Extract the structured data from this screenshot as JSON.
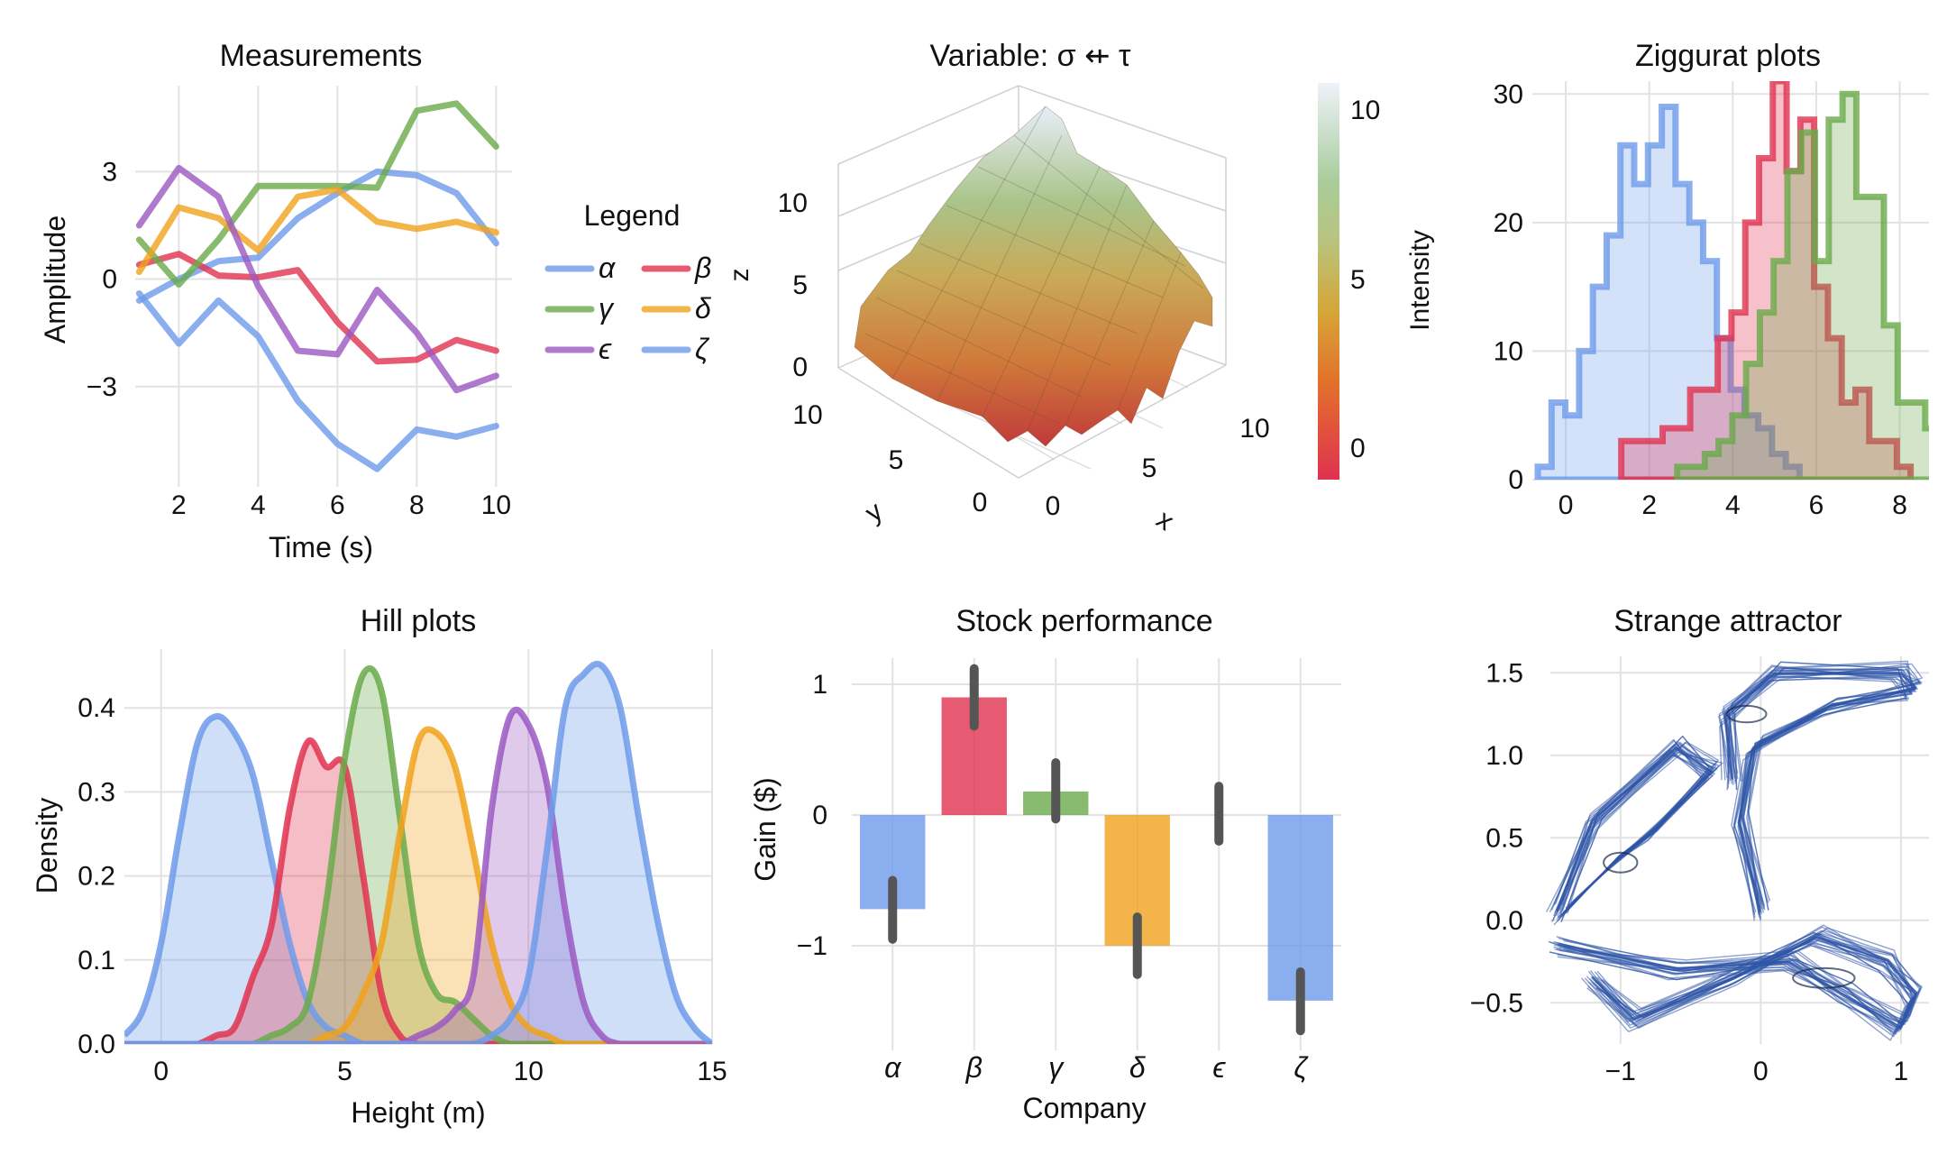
{
  "colors": {
    "blue": "#6e9bea",
    "red": "#e0324f",
    "green": "#6aaa4a",
    "orange": "#f0a21b",
    "purple": "#9b59c2",
    "grid": "#e2e2e2",
    "errorbar": "#555555",
    "attractor": "#2f55a8"
  },
  "measurements": {
    "title": "Measurements",
    "xlabel": "Time (s)",
    "ylabel": "Amplitude",
    "xticks": [
      "2",
      "4",
      "6",
      "8",
      "10"
    ],
    "yticks": [
      "3",
      "0",
      "−3"
    ],
    "legend_title": "Legend",
    "legend": [
      "α",
      "β",
      "γ",
      "δ",
      "ϵ",
      "ζ"
    ]
  },
  "surface": {
    "title": "Variable: σ ⇷ τ",
    "zlabel": "z",
    "xlabel": "x",
    "ylabel": "y",
    "zticks": [
      "0",
      "5",
      "10"
    ],
    "xticks": [
      "0",
      "5",
      "10"
    ],
    "yticks": [
      "0",
      "5",
      "10"
    ],
    "colorbar_label": "Intensity",
    "colorbar_ticks": [
      "10",
      "5",
      "0"
    ]
  },
  "ziggurat": {
    "title": "Ziggurat plots",
    "xticks": [
      "0",
      "2",
      "4",
      "6",
      "8"
    ],
    "yticks": [
      "30",
      "20",
      "10",
      "0"
    ]
  },
  "hill": {
    "title": "Hill plots",
    "xlabel": "Height (m)",
    "ylabel": "Density",
    "xticks": [
      "0",
      "5",
      "10",
      "15"
    ],
    "yticks": [
      "0.4",
      "0.3",
      "0.2",
      "0.1",
      "0.0"
    ]
  },
  "stock": {
    "title": "Stock performance",
    "xlabel": "Company",
    "ylabel": "Gain ($)",
    "yticks": [
      "1",
      "0",
      "−1"
    ],
    "categories": [
      "α",
      "β",
      "γ",
      "δ",
      "ϵ",
      "ζ"
    ]
  },
  "attractor": {
    "title": "Strange attractor",
    "xticks": [
      "−1",
      "0",
      "1"
    ],
    "yticks": [
      "1.5",
      "1.0",
      "0.5",
      "0.0",
      "−0.5"
    ]
  },
  "chart_data": [
    {
      "type": "line",
      "title": "Measurements",
      "xlabel": "Time (s)",
      "ylabel": "Amplitude",
      "xlim": [
        0.9,
        10.4
      ],
      "ylim": [
        -5.8,
        5.4
      ],
      "legend_position": "right",
      "x": [
        1,
        2,
        3,
        4,
        5,
        6,
        7,
        8,
        9,
        10
      ],
      "series": [
        {
          "name": "α",
          "color": "#6e9bea",
          "values": [
            -0.6,
            0.0,
            0.5,
            0.6,
            1.7,
            2.4,
            3.0,
            2.9,
            2.4,
            1.0
          ]
        },
        {
          "name": "β",
          "color": "#e0324f",
          "values": [
            0.4,
            0.7,
            0.1,
            0.05,
            0.25,
            -1.2,
            -2.3,
            -2.25,
            -1.7,
            -2.0
          ]
        },
        {
          "name": "γ",
          "color": "#6aaa4a",
          "values": [
            1.1,
            -0.15,
            1.1,
            2.6,
            2.6,
            2.6,
            2.55,
            4.7,
            4.9,
            3.7
          ]
        },
        {
          "name": "δ",
          "color": "#f0a21b",
          "values": [
            0.2,
            2.0,
            1.7,
            0.8,
            2.3,
            2.5,
            1.6,
            1.4,
            1.6,
            1.3
          ]
        },
        {
          "name": "ϵ",
          "color": "#9b59c2",
          "values": [
            1.5,
            3.1,
            2.3,
            -0.2,
            -2.0,
            -2.1,
            -0.3,
            -1.5,
            -3.1,
            -2.7
          ]
        },
        {
          "name": "ζ",
          "color": "#6e9bea",
          "values": [
            -0.4,
            -1.8,
            -0.6,
            -1.6,
            -3.4,
            -4.6,
            -5.3,
            -4.2,
            -4.4,
            -4.1
          ]
        }
      ]
    },
    {
      "type": "surface",
      "title": "Variable: σ ⇷ τ",
      "xlabel": "x",
      "ylabel": "y",
      "zlabel": "z",
      "xlim": [
        0,
        10
      ],
      "ylim": [
        0,
        10
      ],
      "zlim": [
        0,
        12
      ],
      "colorbar": {
        "label": "Intensity",
        "range": [
          -1,
          11
        ],
        "ticks": [
          0,
          5,
          10
        ]
      }
    },
    {
      "type": "histogram",
      "title": "Ziggurat plots",
      "xlim": [
        -0.8,
        8.7
      ],
      "ylim": [
        0,
        31
      ],
      "bin_width": 0.33,
      "series": [
        {
          "color": "#6e9bea",
          "x_start": -0.67,
          "values": [
            1,
            6,
            5,
            10,
            15,
            19,
            26,
            23,
            26,
            29,
            23,
            20,
            17,
            11,
            7,
            5,
            4,
            2,
            1,
            0
          ]
        },
        {
          "color": "#e0324f",
          "x_start": 1.33,
          "values": [
            3,
            3,
            3,
            4,
            4,
            7,
            7,
            11,
            13,
            20,
            25,
            31,
            24,
            28,
            15,
            11,
            6,
            7,
            3,
            3,
            1
          ]
        },
        {
          "color": "#6aaa4a",
          "x_start": 2.67,
          "values": [
            1,
            1,
            2,
            3,
            5,
            9,
            13,
            17,
            24,
            27,
            17,
            28,
            30,
            22,
            22,
            12,
            6,
            6,
            4
          ]
        }
      ]
    },
    {
      "type": "area",
      "title": "Hill plots",
      "xlabel": "Height (m)",
      "ylabel": "Density",
      "xlim": [
        -1,
        15
      ],
      "ylim": [
        0,
        0.47
      ],
      "x": [
        -1,
        -0.5,
        0,
        0.5,
        1,
        1.5,
        2,
        2.5,
        3,
        3.5,
        4,
        4.5,
        5,
        5.5,
        6,
        6.5,
        7,
        7.5,
        8,
        8.5,
        9,
        9.5,
        10,
        10.5,
        11,
        11.5,
        12,
        12.5,
        13,
        13.5,
        14,
        14.5,
        15
      ],
      "series": [
        {
          "color": "#6e9bea",
          "values": [
            0.01,
            0.04,
            0.12,
            0.25,
            0.36,
            0.39,
            0.37,
            0.32,
            0.22,
            0.12,
            0.05,
            0.02,
            0.01,
            0,
            0,
            0,
            0,
            0,
            0,
            0,
            0,
            0,
            0,
            0,
            0,
            0,
            0,
            0,
            0,
            0,
            0,
            0,
            0
          ]
        },
        {
          "color": "#e0324f",
          "values": [
            0,
            0,
            0,
            0,
            0,
            0.01,
            0.02,
            0.08,
            0.14,
            0.28,
            0.36,
            0.33,
            0.33,
            0.2,
            0.06,
            0.01,
            0,
            0,
            0,
            0,
            0,
            0,
            0,
            0,
            0,
            0,
            0,
            0,
            0,
            0,
            0,
            0,
            0
          ]
        },
        {
          "color": "#6aaa4a",
          "values": [
            0,
            0,
            0,
            0,
            0,
            0,
            0,
            0,
            0.01,
            0.02,
            0.05,
            0.17,
            0.34,
            0.44,
            0.42,
            0.27,
            0.12,
            0.06,
            0.05,
            0.03,
            0.01,
            0,
            0,
            0,
            0,
            0,
            0,
            0,
            0,
            0,
            0,
            0,
            0
          ]
        },
        {
          "color": "#f0a21b",
          "values": [
            0,
            0,
            0,
            0,
            0,
            0,
            0,
            0,
            0,
            0,
            0,
            0.01,
            0.02,
            0.06,
            0.12,
            0.25,
            0.36,
            0.37,
            0.33,
            0.23,
            0.12,
            0.05,
            0.02,
            0.01,
            0,
            0,
            0,
            0,
            0,
            0,
            0,
            0,
            0
          ]
        },
        {
          "color": "#9b59c2",
          "values": [
            0,
            0,
            0,
            0,
            0,
            0,
            0,
            0,
            0,
            0,
            0,
            0,
            0,
            0,
            0,
            0,
            0.01,
            0.02,
            0.04,
            0.08,
            0.28,
            0.39,
            0.38,
            0.31,
            0.16,
            0.05,
            0.01,
            0,
            0,
            0,
            0,
            0,
            0
          ]
        },
        {
          "color": "#6e9bea",
          "values": [
            0,
            0,
            0,
            0,
            0,
            0,
            0,
            0,
            0,
            0,
            0,
            0,
            0,
            0,
            0,
            0,
            0,
            0,
            0,
            0,
            0.01,
            0.03,
            0.08,
            0.23,
            0.4,
            0.44,
            0.45,
            0.4,
            0.27,
            0.15,
            0.06,
            0.02,
            0
          ]
        }
      ]
    },
    {
      "type": "bar",
      "title": "Stock performance",
      "xlabel": "Company",
      "ylabel": "Gain ($)",
      "ylim": [
        -1.8,
        1.2
      ],
      "categories": [
        "α",
        "β",
        "γ",
        "δ",
        "ϵ",
        "ζ"
      ],
      "values": [
        -0.72,
        0.9,
        0.18,
        -1.0,
        0.0,
        -1.42
      ],
      "error_low": [
        -0.95,
        0.68,
        -0.03,
        -1.22,
        -0.2,
        -1.65
      ],
      "error_high": [
        -0.5,
        1.12,
        0.4,
        -0.78,
        0.22,
        -1.2
      ],
      "colors": [
        "#6e9bea",
        "#e0324f",
        "#6aaa4a",
        "#f0a21b",
        "#9b59c2",
        "#6e9bea"
      ]
    },
    {
      "type": "scatter",
      "title": "Strange attractor",
      "xlim": [
        -1.5,
        1.2
      ],
      "ylim": [
        -0.75,
        1.6
      ]
    }
  ]
}
